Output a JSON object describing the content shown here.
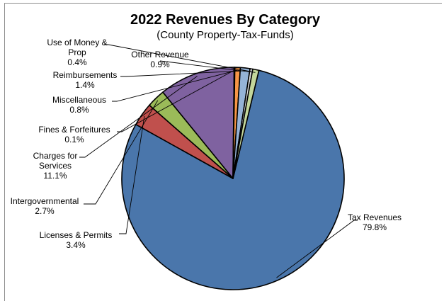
{
  "chart_data": {
    "type": "pie",
    "title": "2022 Revenues By Category",
    "subtitle": "(County Property-Tax-Funds)",
    "slices": [
      {
        "name": "Tax Revenues",
        "name_lines": [
          "Tax Revenues"
        ],
        "value": 79.8,
        "label": "79.8%",
        "color": "#4a76ab"
      },
      {
        "name": "Licenses & Permits",
        "name_lines": [
          "Licenses & Permits"
        ],
        "value": 3.4,
        "label": "3.4%",
        "color": "#c0504d"
      },
      {
        "name": "Intergovernmental",
        "name_lines": [
          "Intergovernmental"
        ],
        "value": 2.7,
        "label": "2.7%",
        "color": "#9bbb59"
      },
      {
        "name": "Charges for Services",
        "name_lines": [
          "Charges for",
          "Services"
        ],
        "value": 11.1,
        "label": "11.1%",
        "color": "#7f62a0"
      },
      {
        "name": "Fines & Forfeitures",
        "name_lines": [
          "Fines & Forfeitures"
        ],
        "value": 0.1,
        "label": "0.1%",
        "color": "#4bacc6"
      },
      {
        "name": "Miscellaneous",
        "name_lines": [
          "Miscellaneous"
        ],
        "value": 0.8,
        "label": "0.8%",
        "color": "#f79646"
      },
      {
        "name": "Reimbursements",
        "name_lines": [
          "Reimbursements"
        ],
        "value": 1.4,
        "label": "1.4%",
        "color": "#95b3d7"
      },
      {
        "name": "Use of Money & Prop",
        "name_lines": [
          "Use of Money &",
          "Prop"
        ],
        "value": 0.4,
        "label": "0.4%",
        "color": "#d9d9d9"
      },
      {
        "name": "Other Revenue",
        "name_lines": [
          "Other Revenue"
        ],
        "value": 0.9,
        "label": "0.9%",
        "color": "#c3d69b"
      }
    ],
    "start_angle_deg": 0,
    "direction": "clockwise",
    "legend": "none",
    "data_labels": "outside with leader lines"
  }
}
